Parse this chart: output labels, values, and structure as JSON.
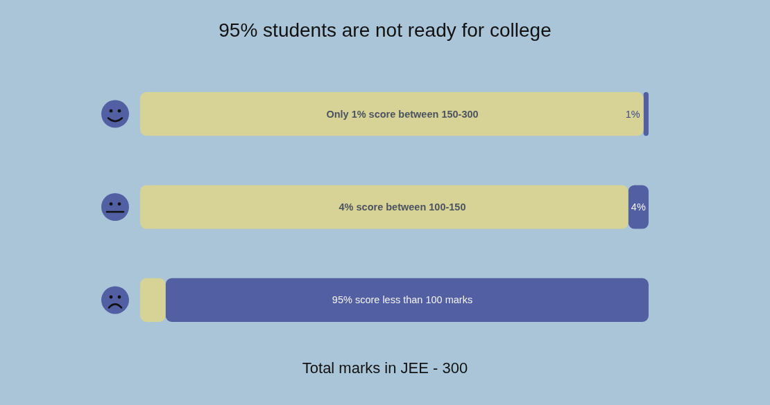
{
  "chart_data": {
    "type": "bar",
    "orientation": "horizontal",
    "stacked": true,
    "title": "95% students are not ready for college",
    "categories": [
      "Only 1% score between 150-300",
      "4% score between 100-150",
      "95% score less than 100 marks"
    ],
    "series": [
      {
        "color": "#5260a3",
        "values": [
          1,
          4,
          95
        ],
        "value_labels": [
          "1%",
          "4%",
          null
        ]
      },
      {
        "color": "#d7d296",
        "values": [
          99,
          96,
          5
        ]
      }
    ],
    "tick_labels": "y",
    "annotations": [
      "Total marks in JEE - 300"
    ]
  }
}
